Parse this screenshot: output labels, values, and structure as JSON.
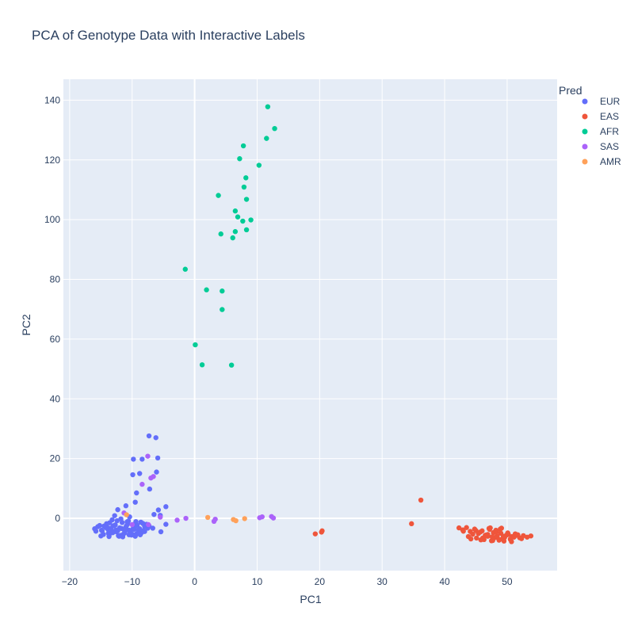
{
  "chart_data": {
    "type": "scatter",
    "title": "PCA of Genotype Data with Interactive Labels",
    "xlabel": "PC1",
    "ylabel": "PC2",
    "xlim": [
      -21,
      58
    ],
    "ylim": [
      -17.5,
      147
    ],
    "x_ticks": [
      -20,
      -10,
      0,
      10,
      20,
      30,
      40,
      50
    ],
    "y_ticks": [
      0,
      20,
      40,
      60,
      80,
      100,
      120,
      140
    ],
    "grid": true,
    "background": "#e5ecf6",
    "legend_title": "Pred",
    "legend_position": "top-right",
    "series": [
      {
        "name": "EUR",
        "color": "#636efa",
        "x": [
          -6.2,
          -7.3,
          -9.8,
          -9.9,
          -8.8,
          -9.3,
          -5.9,
          -6.1,
          -8.4,
          -7.2,
          -9.5,
          -11.0,
          -12.3,
          -4.6,
          -5.5,
          -16.0,
          -15.5,
          -14.8,
          -14.0,
          -13.5,
          -13.0,
          -12.5,
          -12.0,
          -11.5,
          -11.0,
          -10.5,
          -10.0,
          -9.5,
          -9.0,
          -8.5,
          -8.0,
          -7.5,
          -15.8,
          -15.2,
          -14.6,
          -13.9,
          -13.3,
          -12.7,
          -12.2,
          -11.7,
          -11.2,
          -10.7,
          -10.2,
          -9.7,
          -9.2,
          -8.7,
          -8.2,
          -7.7,
          -15.0,
          -14.2,
          -13.6,
          -12.9,
          -12.4,
          -11.9,
          -11.3,
          -10.8,
          -10.3,
          -9.8,
          -9.3,
          -8.8,
          -8.3,
          -14.5,
          -13.8,
          -13.2,
          -12.6,
          -12.1,
          -11.6,
          -11.1,
          -10.6,
          -10.1,
          -9.6,
          -9.1,
          -8.6,
          -14.9,
          -14.1,
          -13.4,
          -12.8,
          -12.3,
          -11.8,
          -11.4,
          -10.9,
          -10.4,
          -9.9,
          -9.4,
          -8.9,
          -13.7,
          -13.1,
          -12.0,
          -11.5,
          -10.5,
          -9.5,
          -8.0,
          -7.3,
          -6.7,
          -5.4,
          -4.6,
          -5.8,
          -6.5
        ],
        "y": [
          27.0,
          27.6,
          19.8,
          14.6,
          15.0,
          8.5,
          20.2,
          15.5,
          19.8,
          9.8,
          5.4,
          4.2,
          2.9,
          3.9,
          1.0,
          -3.5,
          -2.8,
          -4.2,
          -3.0,
          -5.0,
          -2.5,
          -4.5,
          -3.2,
          -5.6,
          -2.9,
          -4.0,
          -5.3,
          -2.6,
          -3.9,
          -4.8,
          -2.7,
          -3.3,
          -4.3,
          -2.4,
          -5.4,
          -3.6,
          -4.7,
          -2.2,
          -5.8,
          -3.4,
          -4.9,
          -1.9,
          -5.1,
          -3.7,
          -2.3,
          -5.5,
          -4.1,
          -2.0,
          -5.9,
          -3.1,
          -1.5,
          -4.4,
          -0.8,
          -5.7,
          -3.8,
          -1.2,
          -4.6,
          -2.1,
          -5.2,
          -3.5,
          -1.7,
          -2.6,
          -5.0,
          -0.5,
          -3.9,
          -6.0,
          -1.4,
          -4.2,
          -0.9,
          -5.6,
          -2.8,
          -4.9,
          -1.3,
          -4.0,
          -1.8,
          -3.3,
          0.9,
          -4.1,
          -0.2,
          -5.3,
          -2.5,
          0.5,
          -3.6,
          -1.1,
          -5.0,
          -6.1,
          -4.8,
          -5.9,
          -6.2,
          -5.5,
          -6.0,
          -4.4,
          -2.5,
          -3.3,
          -4.5,
          -2.0,
          2.8,
          1.3
        ]
      },
      {
        "name": "EAS",
        "color": "#ef553b",
        "x": [
          36.2,
          34.7,
          20.4,
          20.3,
          19.3,
          42.3,
          42.9,
          43.5,
          44.1,
          44.8,
          45.4,
          46.0,
          46.6,
          47.2,
          47.8,
          48.4,
          49.0,
          49.6,
          50.2,
          50.8,
          51.4,
          52.0,
          52.6,
          53.2,
          53.8,
          43.8,
          44.5,
          45.1,
          45.7,
          46.3,
          46.9,
          47.5,
          48.1,
          48.7,
          49.3,
          49.9,
          50.5,
          51.1,
          51.7,
          52.3,
          44.2,
          45.0,
          45.8,
          46.5,
          47.1,
          47.7,
          48.3,
          48.9,
          49.5,
          50.1,
          50.7,
          51.3,
          46.1,
          46.9,
          47.6,
          48.2,
          48.8,
          49.4,
          43.0,
          47.3,
          49.1
        ],
        "y": [
          6.1,
          -1.8,
          -4.2,
          -4.6,
          -5.2,
          -3.2,
          -3.9,
          -3.1,
          -4.4,
          -3.6,
          -5.1,
          -4.2,
          -5.6,
          -3.7,
          -4.8,
          -5.9,
          -5.0,
          -6.4,
          -5.4,
          -6.1,
          -5.7,
          -6.5,
          -5.8,
          -6.3,
          -5.9,
          -6.1,
          -5.3,
          -6.6,
          -4.6,
          -7.1,
          -6.0,
          -7.5,
          -6.4,
          -7.3,
          -6.8,
          -5.6,
          -7.0,
          -6.3,
          -5.5,
          -6.8,
          -6.9,
          -4.1,
          -7.2,
          -5.7,
          -3.4,
          -7.4,
          -4.5,
          -3.6,
          -7.6,
          -4.9,
          -7.8,
          -5.2,
          -6.6,
          -5.4,
          -6.2,
          -4.0,
          -7.1,
          -6.0,
          -4.3,
          -3.2,
          -3.3
        ]
      },
      {
        "name": "AFR",
        "color": "#00cc96",
        "x": [
          11.7,
          12.8,
          11.5,
          7.8,
          7.2,
          10.3,
          8.2,
          7.9,
          3.8,
          8.3,
          6.5,
          6.9,
          9.0,
          7.7,
          6.5,
          8.3,
          4.2,
          6.1,
          -1.5,
          1.9,
          4.4,
          4.4,
          0.1,
          1.2,
          5.9
        ],
        "y": [
          137.8,
          130.5,
          127.2,
          124.7,
          120.4,
          118.2,
          114.0,
          110.9,
          108.1,
          106.8,
          102.9,
          100.9,
          99.9,
          99.5,
          96.0,
          96.6,
          95.2,
          93.9,
          83.4,
          76.5,
          76.1,
          69.9,
          58.1,
          51.4,
          51.3
        ]
      },
      {
        "name": "SAS",
        "color": "#ab63fa",
        "x": [
          -7.5,
          -6.6,
          -7.0,
          -8.4,
          -11.3,
          -5.5,
          -1.4,
          -2.8,
          -7.4,
          -10.0,
          3.3,
          3.1,
          10.4,
          10.8,
          12.3,
          12.6
        ],
        "y": [
          20.8,
          14.0,
          13.5,
          11.4,
          1.8,
          0.4,
          0.0,
          -0.6,
          -2.1,
          -2.1,
          -0.3,
          -1.0,
          0.2,
          0.5,
          0.6,
          0.1
        ]
      },
      {
        "name": "AMR",
        "color": "#ffa15a",
        "x": [
          2.1,
          6.2,
          6.6,
          8.0,
          -10.9
        ],
        "y": [
          0.3,
          -0.4,
          -0.8,
          -0.1,
          1.2
        ]
      }
    ]
  }
}
